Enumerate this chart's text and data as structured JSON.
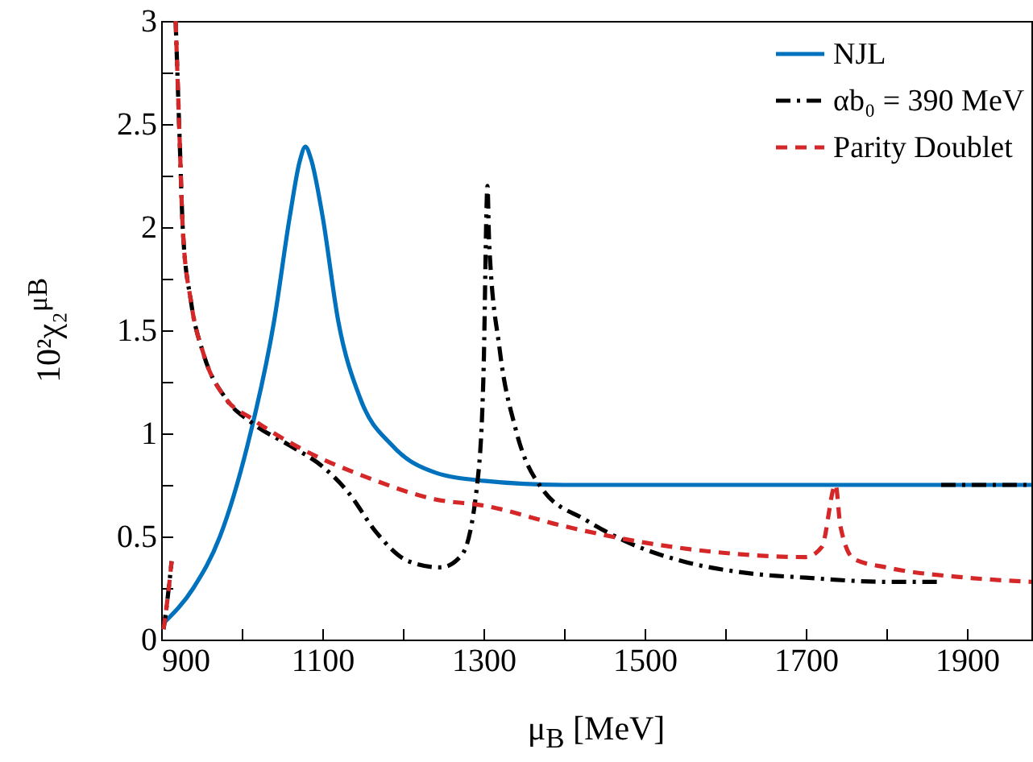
{
  "chart_data": {
    "type": "line",
    "xlabel": "μ$_{B}$ [MeV]",
    "ylabel": "10²χ₂$^{μB}$",
    "xlim": [
      900,
      1980
    ],
    "ylim": [
      0,
      3
    ],
    "xticks": [
      900,
      {
        "value": 1000,
        "label": null
      },
      1100,
      {
        "value": 1200,
        "label": null
      },
      1300,
      {
        "value": 1400,
        "label": null
      },
      1500,
      {
        "value": 1600,
        "label": null
      },
      1700,
      {
        "value": 1800,
        "label": null
      },
      1900
    ],
    "yticks": [
      0,
      {
        "value": 0.25,
        "label": null
      },
      0.5,
      {
        "value": 0.75,
        "label": null
      },
      1,
      {
        "value": 1.25,
        "label": null
      },
      1.5,
      {
        "value": 1.75,
        "label": null
      },
      2,
      {
        "value": 2.25,
        "label": null
      },
      2.5,
      {
        "value": 2.75,
        "label": null
      },
      3
    ],
    "legend": "top right",
    "grid": false,
    "series": [
      {
        "name": "NJL",
        "color": "#0072bd",
        "line_style": "solid",
        "x": [
          903,
          940,
          973,
          1007,
          1040,
          1060,
          1072,
          1079,
          1086,
          1100,
          1120,
          1147,
          1187,
          1240,
          1300,
          1400,
          1600,
          1800,
          1980
        ],
        "values": [
          0.08,
          0.25,
          0.5,
          0.94,
          1.54,
          2.06,
          2.32,
          2.39,
          2.33,
          2.06,
          1.54,
          1.17,
          0.94,
          0.81,
          0.77,
          0.75,
          0.75,
          0.75,
          0.75
        ]
      },
      {
        "name": "αb₀ = 390 MeV",
        "color": "#000000",
        "line_style": "dashdot",
        "x": [
          903,
          908,
          913,
          915,
          918,
          923,
          927,
          937,
          953,
          980,
          1013,
          1060,
          1100,
          1133,
          1167,
          1207,
          1247,
          1273,
          1293,
          1300,
          1305,
          1307,
          1320,
          1340,
          1373,
          1427,
          1480,
          1547,
          1633,
          1700,
          1800,
          1865,
          1866,
          1868,
          1980
        ],
        "values": [
          0.05,
          0.2,
          0.38,
          null,
          3,
          2.42,
          1.98,
          1.64,
          1.38,
          1.17,
          1.05,
          0.94,
          0.84,
          0.71,
          0.52,
          0.38,
          0.35,
          0.41,
          0.78,
          1.28,
          2.2,
          1.93,
          1.41,
          1.02,
          0.73,
          0.58,
          0.47,
          0.38,
          0.32,
          0.3,
          0.28,
          0.28,
          null,
          0.75,
          0.75
        ]
      },
      {
        "name": "Parity Doublet",
        "color": "#d62728",
        "line_style": "dashed",
        "x": [
          903,
          908,
          913,
          915,
          918,
          923,
          927,
          937,
          953,
          980,
          1013,
          1067,
          1160,
          1240,
          1300,
          1400,
          1500,
          1600,
          1700,
          1720,
          1737,
          1743,
          1760,
          1800,
          1900,
          1980
        ],
        "values": [
          0.05,
          0.2,
          0.38,
          null,
          3,
          2.42,
          1.98,
          1.64,
          1.38,
          1.17,
          1.07,
          0.94,
          0.78,
          0.68,
          0.65,
          0.55,
          0.47,
          0.42,
          0.4,
          0.45,
          0.75,
          0.55,
          0.39,
          0.35,
          0.3,
          0.28
        ]
      }
    ]
  }
}
